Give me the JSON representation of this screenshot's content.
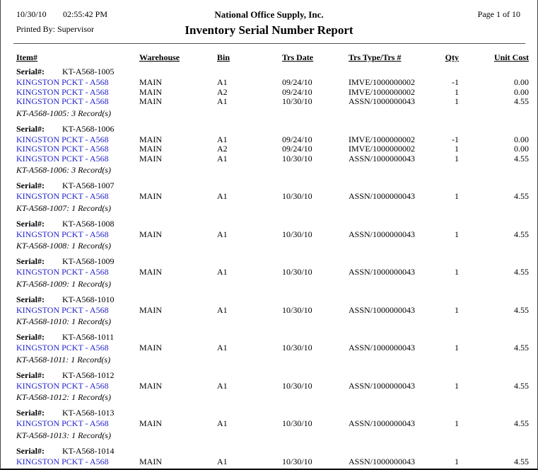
{
  "page_header": {
    "date": "10/30/10",
    "time": "02:55:42 PM",
    "printed_by": "Printed By: Supervisor",
    "company": "National Office Supply, Inc.",
    "report_title": "Inventory Serial Number Report",
    "page_info": "Page 1 of 10"
  },
  "table": {
    "columns": [
      "Item#",
      "Warehouse",
      "Bin",
      "Trs Date",
      "Trs Type/Trs #",
      "Qty",
      "Unit Cost"
    ],
    "serial_label": "Serial#:",
    "groups": [
      {
        "serial": "KT-A568-1005",
        "rows": [
          {
            "item": "KINGSTON PCKT - A568",
            "warehouse": "MAIN",
            "bin": "A1",
            "trs_date": "09/24/10",
            "trs_type": "IMVE/1000000002",
            "qty": "-1",
            "unit_cost": "0.00"
          },
          {
            "item": "KINGSTON PCKT - A568",
            "warehouse": "MAIN",
            "bin": "A2",
            "trs_date": "09/24/10",
            "trs_type": "IMVE/1000000002",
            "qty": "1",
            "unit_cost": "0.00"
          },
          {
            "item": "KINGSTON PCKT - A568",
            "warehouse": "MAIN",
            "bin": "A1",
            "trs_date": "10/30/10",
            "trs_type": "ASSN/1000000043",
            "qty": "1",
            "unit_cost": "4.55"
          }
        ],
        "summary": "KT-A568-1005: 3 Record(s)"
      },
      {
        "serial": "KT-A568-1006",
        "rows": [
          {
            "item": "KINGSTON PCKT - A568",
            "warehouse": "MAIN",
            "bin": "A1",
            "trs_date": "09/24/10",
            "trs_type": "IMVE/1000000002",
            "qty": "-1",
            "unit_cost": "0.00"
          },
          {
            "item": "KINGSTON PCKT - A568",
            "warehouse": "MAIN",
            "bin": "A2",
            "trs_date": "09/24/10",
            "trs_type": "IMVE/1000000002",
            "qty": "1",
            "unit_cost": "0.00"
          },
          {
            "item": "KINGSTON PCKT - A568",
            "warehouse": "MAIN",
            "bin": "A1",
            "trs_date": "10/30/10",
            "trs_type": "ASSN/1000000043",
            "qty": "1",
            "unit_cost": "4.55"
          }
        ],
        "summary": "KT-A568-1006: 3 Record(s)"
      },
      {
        "serial": "KT-A568-1007",
        "rows": [
          {
            "item": "KINGSTON PCKT - A568",
            "warehouse": "MAIN",
            "bin": "A1",
            "trs_date": "10/30/10",
            "trs_type": "ASSN/1000000043",
            "qty": "1",
            "unit_cost": "4.55"
          }
        ],
        "summary": "KT-A568-1007: 1 Record(s)"
      },
      {
        "serial": "KT-A568-1008",
        "rows": [
          {
            "item": "KINGSTON PCKT - A568",
            "warehouse": "MAIN",
            "bin": "A1",
            "trs_date": "10/30/10",
            "trs_type": "ASSN/1000000043",
            "qty": "1",
            "unit_cost": "4.55"
          }
        ],
        "summary": "KT-A568-1008: 1 Record(s)"
      },
      {
        "serial": "KT-A568-1009",
        "rows": [
          {
            "item": "KINGSTON PCKT - A568",
            "warehouse": "MAIN",
            "bin": "A1",
            "trs_date": "10/30/10",
            "trs_type": "ASSN/1000000043",
            "qty": "1",
            "unit_cost": "4.55"
          }
        ],
        "summary": "KT-A568-1009: 1 Record(s)"
      },
      {
        "serial": "KT-A568-1010",
        "rows": [
          {
            "item": "KINGSTON PCKT - A568",
            "warehouse": "MAIN",
            "bin": "A1",
            "trs_date": "10/30/10",
            "trs_type": "ASSN/1000000043",
            "qty": "1",
            "unit_cost": "4.55"
          }
        ],
        "summary": "KT-A568-1010: 1 Record(s)"
      },
      {
        "serial": "KT-A568-1011",
        "rows": [
          {
            "item": "KINGSTON PCKT - A568",
            "warehouse": "MAIN",
            "bin": "A1",
            "trs_date": "10/30/10",
            "trs_type": "ASSN/1000000043",
            "qty": "1",
            "unit_cost": "4.55"
          }
        ],
        "summary": "KT-A568-1011: 1 Record(s)"
      },
      {
        "serial": "KT-A568-1012",
        "rows": [
          {
            "item": "KINGSTON PCKT - A568",
            "warehouse": "MAIN",
            "bin": "A1",
            "trs_date": "10/30/10",
            "trs_type": "ASSN/1000000043",
            "qty": "1",
            "unit_cost": "4.55"
          }
        ],
        "summary": "KT-A568-1012: 1 Record(s)"
      },
      {
        "serial": "KT-A568-1013",
        "rows": [
          {
            "item": "KINGSTON PCKT - A568",
            "warehouse": "MAIN",
            "bin": "A1",
            "trs_date": "10/30/10",
            "trs_type": "ASSN/1000000043",
            "qty": "1",
            "unit_cost": "4.55"
          }
        ],
        "summary": "KT-A568-1013: 1 Record(s)"
      },
      {
        "serial": "KT-A568-1014",
        "rows": [
          {
            "item": "KINGSTON PCKT - A568",
            "warehouse": "MAIN",
            "bin": "A1",
            "trs_date": "10/30/10",
            "trs_type": "ASSN/1000000043",
            "qty": "1",
            "unit_cost": "4.55"
          }
        ],
        "summary": null
      }
    ]
  }
}
